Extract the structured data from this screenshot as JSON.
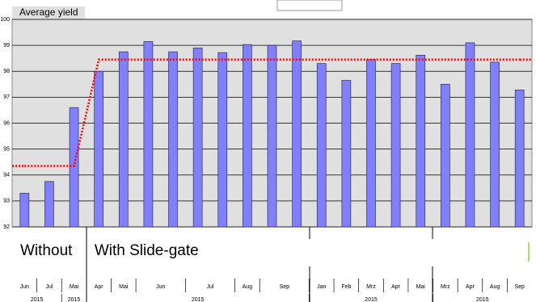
{
  "chart_data": {
    "type": "bar",
    "title": "Average yield",
    "categories": [
      null,
      null,
      null,
      null,
      null,
      null,
      null,
      null,
      null,
      null,
      null,
      null,
      null,
      null,
      null,
      null,
      null,
      null,
      null,
      null,
      null
    ],
    "series": [
      {
        "type": "bar",
        "color": "#8080ff",
        "values": [
          93.3,
          93.75,
          96.6,
          98.0,
          98.75,
          99.15,
          98.75,
          98.9,
          98.72,
          99.03,
          99.0,
          99.17,
          98.3,
          97.65,
          98.45,
          98.3,
          98.62,
          97.5,
          99.1,
          98.35,
          97.28
        ]
      },
      {
        "type": "line",
        "color": "#ff0000",
        "values": [
          94.35,
          94.35,
          94.35,
          98.45,
          98.45,
          98.45,
          98.45,
          98.45,
          98.45,
          98.45,
          98.45,
          98.45,
          98.45,
          98.45,
          98.45,
          98.45,
          98.45,
          98.45,
          98.45,
          98.45,
          98.45
        ]
      }
    ],
    "ylim": [
      92,
      100
    ],
    "yticks": [
      92,
      93,
      94,
      95,
      96,
      97,
      98,
      99,
      100
    ],
    "grid": true,
    "groups": [
      {
        "label": "Without",
        "bars": 3
      },
      {
        "label": "With Slide-gate",
        "bars": 18
      }
    ],
    "months": [
      {
        "label": "Jun",
        "bars": 1
      },
      {
        "label": "Jul",
        "bars": 1
      },
      {
        "label": "Mai",
        "bars": 1
      },
      {
        "label": "Apr",
        "bars": 1
      },
      {
        "label": "Mai",
        "bars": 1
      },
      {
        "label": "Jun",
        "bars": 2
      },
      {
        "label": "Jul",
        "bars": 2
      },
      {
        "label": "Aug",
        "bars": 1
      },
      {
        "label": "Sep",
        "bars": 2
      },
      {
        "label": "Jan",
        "bars": 1
      },
      {
        "label": "Feb",
        "bars": 1
      },
      {
        "label": "Mrz",
        "bars": 1
      },
      {
        "label": "Apr",
        "bars": 1
      },
      {
        "label": "Mai",
        "bars": 1
      },
      {
        "label": "Mrz",
        "bars": 1
      },
      {
        "label": "Apr",
        "bars": 1
      },
      {
        "label": "Aug",
        "bars": 1
      },
      {
        "label": "Sep",
        "bars": 1
      }
    ],
    "years": [
      {
        "label": "2015",
        "bars": 2
      },
      {
        "label": "2015",
        "bars": 1
      },
      {
        "label": "2015",
        "bars": 9
      },
      {
        "label": "2015",
        "bars": 5
      },
      {
        "label": "2015",
        "bars": 4
      }
    ]
  }
}
